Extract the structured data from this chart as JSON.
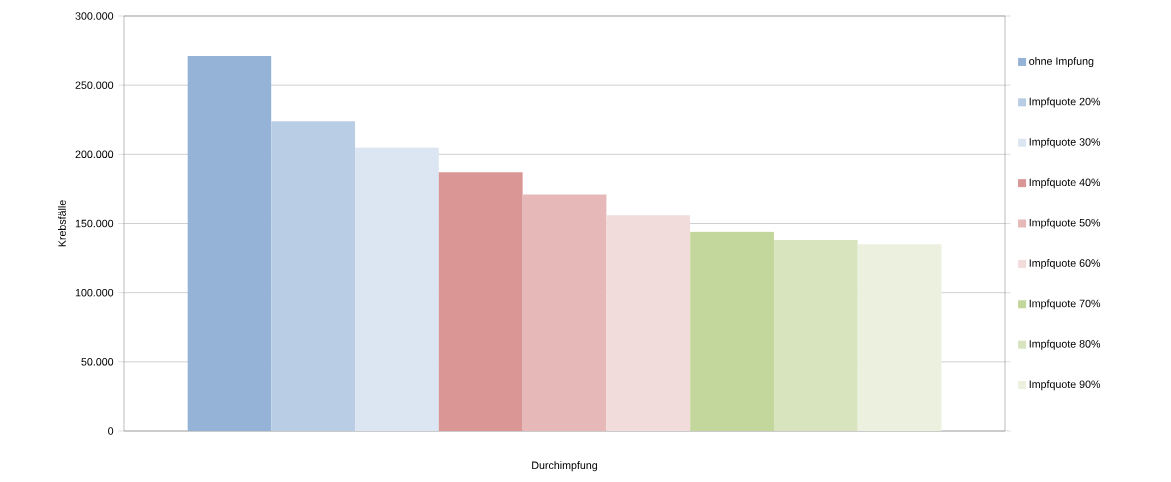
{
  "chart_data": {
    "type": "bar",
    "categories": [
      null
    ],
    "xlabel": "Durchimpfung",
    "ylabel": "Krebsfälle",
    "series": [
      {
        "name": "ohne Impfung",
        "color": "#95b3d7",
        "values": [
          271000
        ]
      },
      {
        "name": "Impfquote 20%",
        "color": "#b9cde5",
        "values": [
          224000
        ]
      },
      {
        "name": "Impfquote 30%",
        "color": "#dce6f2",
        "values": [
          205000
        ]
      },
      {
        "name": "Impfquote 40%",
        "color": "#d99694",
        "values": [
          187000
        ]
      },
      {
        "name": "Impfquote 50%",
        "color": "#e6b9b8",
        "values": [
          171000
        ]
      },
      {
        "name": "Impfquote 60%",
        "color": "#f2dcdb",
        "values": [
          156000
        ]
      },
      {
        "name": "Impfquote 70%",
        "color": "#c3d69b",
        "values": [
          144000
        ]
      },
      {
        "name": "Impfquote 80%",
        "color": "#d7e4bd",
        "values": [
          138000
        ]
      },
      {
        "name": "Impfquote 90%",
        "color": "#ebf1de",
        "values": [
          135000
        ]
      }
    ],
    "ylim": [
      0,
      300000
    ],
    "yticks": [
      {
        "value": 0,
        "label": "0"
      },
      {
        "value": 50000,
        "label": "50.000"
      },
      {
        "value": 100000,
        "label": "100.000"
      },
      {
        "value": 150000,
        "label": "150.000"
      },
      {
        "value": 200000,
        "label": "200.000"
      },
      {
        "value": 250000,
        "label": "250.000"
      },
      {
        "value": 300000,
        "label": "300.000"
      }
    ],
    "grid": "y",
    "legend": "right"
  }
}
